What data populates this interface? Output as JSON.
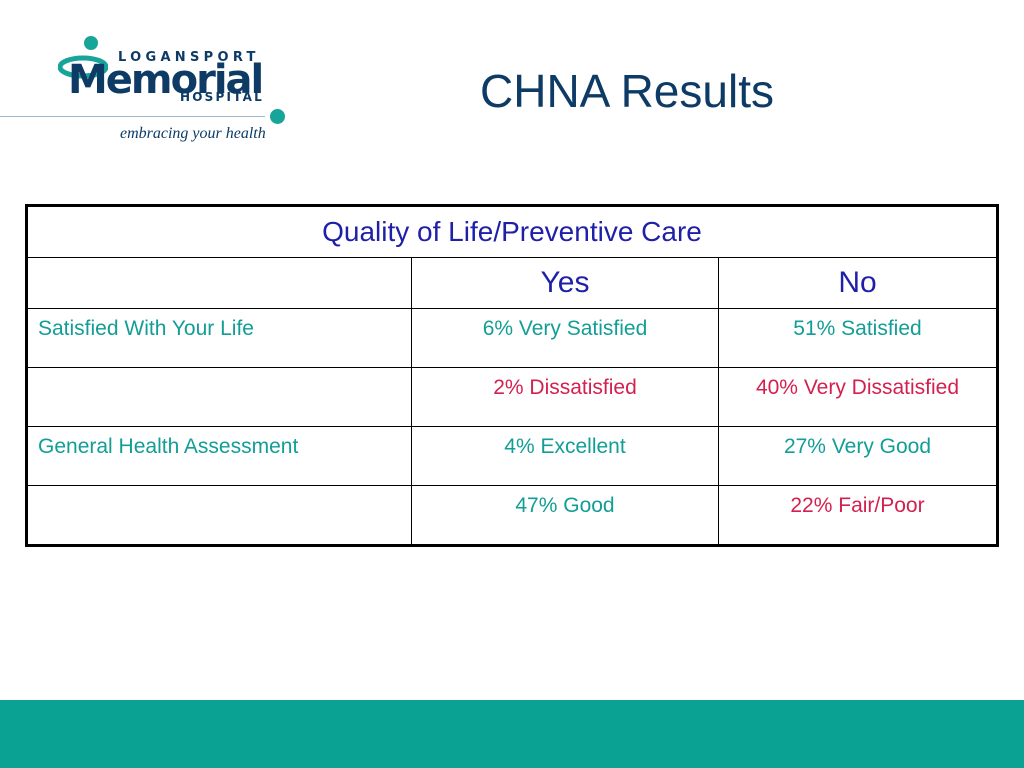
{
  "logo": {
    "top_text": "LOGANSPORT",
    "main_text": "Memorial",
    "bottom_text": "HOSPITAL",
    "tagline": "embracing your health",
    "brand_colors": {
      "navy": "#0d3b66",
      "teal": "#17a59a"
    }
  },
  "title": "CHNA Results",
  "table": {
    "caption": "Quality of Life/Preventive Care",
    "columns": [
      "",
      "Yes",
      "No"
    ],
    "rows": [
      {
        "label": "Satisfied With Your Life",
        "yes": "6% Very Satisfied",
        "no": "51% Satisfied"
      },
      {
        "label": "",
        "yes": "2% Dissatisfied",
        "no": "40% Very Dissatisfied"
      },
      {
        "label": "General Health Assessment",
        "yes": "4% Excellent",
        "no": "27% Very Good"
      },
      {
        "label": "",
        "yes": "47% Good",
        "no": "22% Fair/Poor"
      }
    ],
    "colors": {
      "header": "#1f1fa8",
      "teal": "#129e96",
      "pink": "#d4204f"
    }
  },
  "footer": {
    "color": "#0aa393"
  }
}
